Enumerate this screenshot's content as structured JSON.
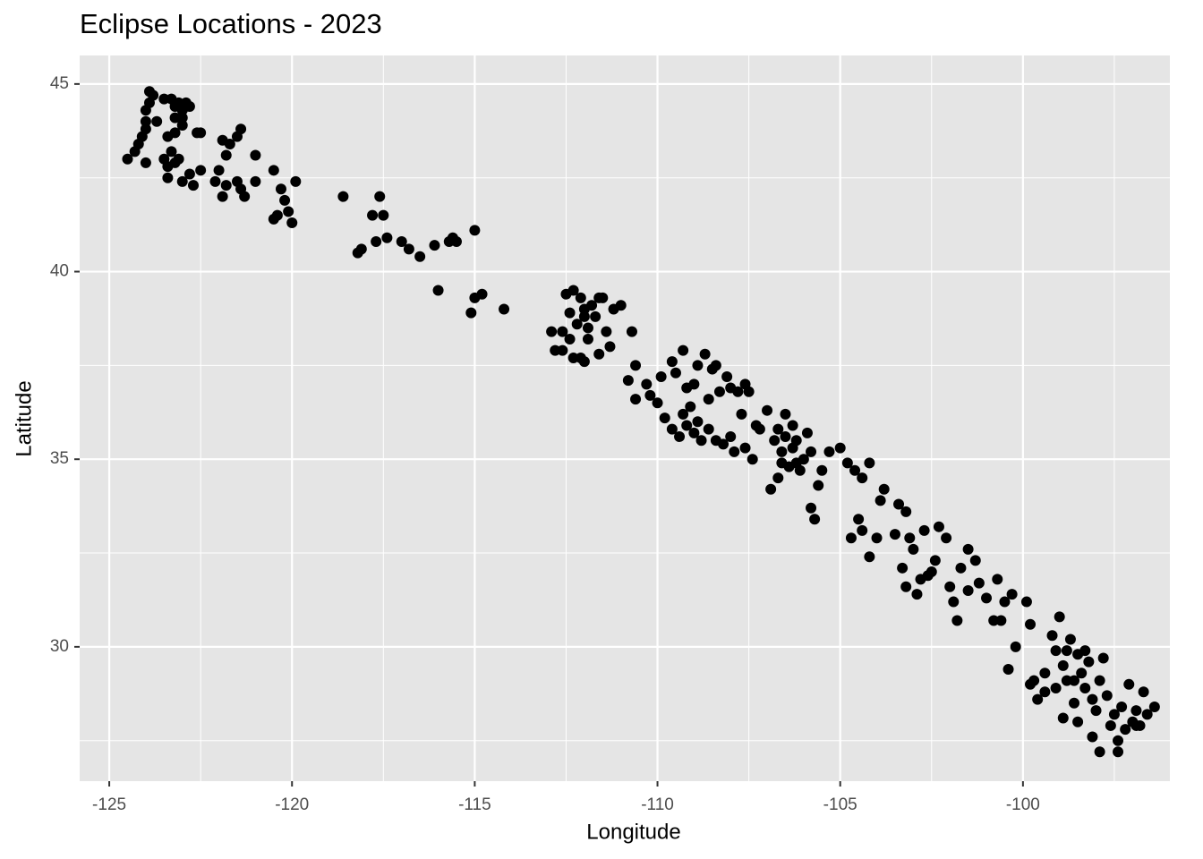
{
  "chart_data": {
    "type": "scatter",
    "title": "Eclipse Locations - 2023",
    "x_label": "Longitude",
    "y_label": "Latitude",
    "color": "#000000",
    "grid": true,
    "xlim": [
      -125.81,
      -95.98
    ],
    "ylim": [
      26.42,
      45.76
    ],
    "xticks": [
      -125,
      -120,
      -115,
      -110,
      -105,
      -100
    ],
    "yticks": [
      30,
      35,
      40,
      45
    ],
    "x_minor_ticks": [
      -122.5,
      -117.5,
      -112.5,
      -107.5,
      -102.5,
      -97.5
    ],
    "y_minor_ticks": [
      27.5,
      32.5,
      37.5,
      42.5
    ],
    "x": [
      -124.5,
      -124.3,
      -124.2,
      -124.1,
      -124.0,
      -124.0,
      -124.0,
      -123.9,
      -123.9,
      -124.0,
      -123.8,
      -123.7,
      -123.5,
      -123.3,
      -123.2,
      -123.1,
      -123.0,
      -122.9,
      -122.8,
      -123.2,
      -123.0,
      -123.4,
      -123.2,
      -123.0,
      -123.3,
      -123.4,
      -123.4,
      -123.2,
      -123.1,
      -123.0,
      -122.8,
      -122.7,
      -122.5,
      -122.5,
      -122.1,
      -122.0,
      -121.9,
      -121.8,
      -121.7,
      -121.8,
      -121.5,
      -121.4,
      -121.5,
      -121.3,
      -121.4,
      -121.0,
      -121.0,
      -121.9,
      -120.5,
      -120.3,
      -120.2,
      -120.1,
      -120.0,
      -120.5,
      -119.9,
      -120.4,
      -123.5,
      -122.6,
      -118.6,
      -118.2,
      -118.1,
      -117.8,
      -117.6,
      -117.5,
      -117.4,
      -117.7,
      -117.0,
      -116.8,
      -116.5,
      -116.1,
      -115.7,
      -115.5,
      -115.6,
      -115.0,
      -116.0,
      -115.0,
      -114.8,
      -115.1,
      -114.2,
      -112.9,
      -112.8,
      -112.6,
      -112.5,
      -112.4,
      -112.3,
      -112.2,
      -112.1,
      -112.0,
      -111.9,
      -111.8,
      -111.7,
      -111.6,
      -111.5,
      -111.4,
      -111.3,
      -111.2,
      -111.0,
      -112.3,
      -112.0,
      -111.9,
      -112.1,
      -112.4,
      -112.6,
      -112.0,
      -111.6,
      -110.7,
      -110.8,
      -110.6,
      -110.6,
      -110.3,
      -110.2,
      -110.0,
      -109.9,
      -109.6,
      -109.5,
      -109.3,
      -109.2,
      -109.1,
      -109.0,
      -108.9,
      -108.7,
      -108.5,
      -108.4,
      -108.3,
      -108.1,
      -108.0,
      -107.8,
      -107.6,
      -107.5,
      -109.8,
      -109.6,
      -109.4,
      -109.2,
      -109.0,
      -108.8,
      -108.6,
      -108.4,
      -108.2,
      -108.0,
      -107.9,
      -107.6,
      -107.4,
      -107.2,
      -107.0,
      -106.9,
      -106.8,
      -106.7,
      -106.6,
      -106.5,
      -106.4,
      -106.3,
      -106.2,
      -106.1,
      -106.0,
      -105.9,
      -105.8,
      -105.6,
      -105.5,
      -105.3,
      -105.0,
      -104.8,
      -104.6,
      -104.4,
      -104.2,
      -105.8,
      -105.7,
      -106.5,
      -106.6,
      -106.3,
      -106.2,
      -106.7,
      -107.3,
      -107.7,
      -108.6,
      -109.3,
      -108.9,
      -104.7,
      -104.5,
      -104.4,
      -104.2,
      -104.0,
      -103.9,
      -103.8,
      -103.5,
      -103.4,
      -103.2,
      -103.3,
      -103.2,
      -103.1,
      -102.9,
      -102.7,
      -102.5,
      -102.4,
      -102.3,
      -102.1,
      -102.0,
      -101.9,
      -101.8,
      -101.7,
      -101.5,
      -101.3,
      -101.2,
      -101.0,
      -100.8,
      -100.7,
      -100.5,
      -100.3,
      -100.4,
      -100.2,
      -102.8,
      -102.6,
      -103.0,
      -101.5,
      -100.6,
      -99.9,
      -99.8,
      -99.7,
      -99.6,
      -99.4,
      -99.2,
      -99.1,
      -99.0,
      -98.9,
      -98.8,
      -98.7,
      -98.6,
      -98.5,
      -98.4,
      -98.3,
      -98.2,
      -98.1,
      -98.0,
      -97.9,
      -97.8,
      -97.7,
      -97.6,
      -97.5,
      -97.4,
      -97.3,
      -97.2,
      -97.1,
      -97.0,
      -96.9,
      -96.8,
      -96.7,
      -96.6,
      -96.4,
      -96.9,
      -97.4,
      -98.3,
      -98.8,
      -99.1,
      -99.8,
      -99.4,
      -98.9,
      -98.1,
      -98.5,
      -97.9,
      -98.6
    ],
    "values": [
      43.0,
      43.2,
      43.4,
      43.6,
      43.8,
      44.0,
      44.3,
      44.5,
      44.8,
      42.9,
      44.7,
      44.0,
      44.6,
      44.6,
      44.4,
      44.5,
      44.3,
      44.5,
      44.4,
      44.1,
      44.1,
      43.6,
      43.7,
      43.9,
      43.2,
      42.8,
      42.5,
      42.9,
      43.0,
      42.4,
      42.6,
      42.3,
      42.7,
      43.7,
      42.4,
      42.7,
      42.0,
      42.3,
      43.4,
      43.1,
      42.4,
      43.8,
      43.6,
      42.0,
      42.2,
      43.1,
      42.4,
      43.5,
      42.7,
      42.2,
      41.9,
      41.6,
      41.3,
      41.4,
      42.4,
      41.5,
      43.0,
      43.7,
      42.0,
      40.5,
      40.6,
      41.5,
      42.0,
      41.5,
      40.9,
      40.8,
      40.8,
      40.6,
      40.4,
      40.7,
      40.8,
      40.8,
      40.9,
      41.1,
      39.5,
      39.3,
      39.4,
      38.9,
      39.0,
      38.4,
      37.9,
      37.9,
      39.4,
      38.9,
      39.5,
      38.6,
      39.3,
      38.8,
      38.5,
      39.1,
      38.8,
      39.3,
      39.3,
      38.4,
      38.0,
      39.0,
      39.1,
      37.7,
      37.6,
      38.2,
      37.7,
      38.2,
      38.4,
      39.0,
      37.8,
      38.4,
      37.1,
      37.5,
      36.6,
      37.0,
      36.7,
      36.5,
      37.2,
      37.6,
      37.3,
      37.9,
      36.9,
      36.4,
      37.0,
      37.5,
      37.8,
      37.4,
      37.5,
      36.8,
      37.2,
      36.9,
      36.8,
      37.0,
      36.8,
      36.1,
      35.8,
      35.6,
      35.9,
      35.7,
      35.5,
      35.8,
      35.5,
      35.4,
      35.6,
      35.2,
      35.3,
      35.0,
      35.8,
      36.3,
      34.2,
      35.5,
      34.5,
      35.2,
      36.2,
      34.8,
      35.9,
      35.5,
      34.7,
      35.0,
      35.7,
      35.2,
      34.3,
      34.7,
      35.2,
      35.3,
      34.9,
      34.7,
      34.5,
      34.9,
      33.7,
      33.4,
      35.6,
      34.9,
      35.3,
      34.9,
      35.8,
      35.9,
      36.2,
      36.6,
      36.2,
      36.0,
      32.9,
      33.4,
      33.1,
      32.4,
      32.9,
      33.9,
      34.2,
      33.0,
      33.8,
      33.6,
      32.1,
      31.6,
      32.9,
      31.4,
      33.1,
      32.0,
      32.3,
      33.2,
      32.9,
      31.6,
      31.2,
      30.7,
      32.1,
      32.6,
      32.3,
      31.7,
      31.3,
      30.7,
      31.8,
      31.2,
      31.4,
      29.4,
      30.0,
      31.8,
      31.9,
      32.6,
      31.5,
      30.7,
      31.2,
      30.6,
      29.1,
      28.6,
      29.3,
      30.3,
      28.9,
      30.8,
      29.5,
      29.1,
      30.2,
      28.5,
      29.8,
      29.3,
      28.9,
      29.6,
      27.6,
      28.3,
      27.2,
      29.7,
      28.7,
      27.9,
      28.2,
      27.5,
      28.4,
      27.8,
      29.0,
      28.0,
      28.3,
      27.9,
      28.8,
      28.2,
      28.4,
      27.9,
      27.2,
      29.9,
      29.9,
      29.9,
      29.0,
      28.8,
      28.1,
      28.6,
      28.0,
      29.1,
      29.1
    ]
  }
}
